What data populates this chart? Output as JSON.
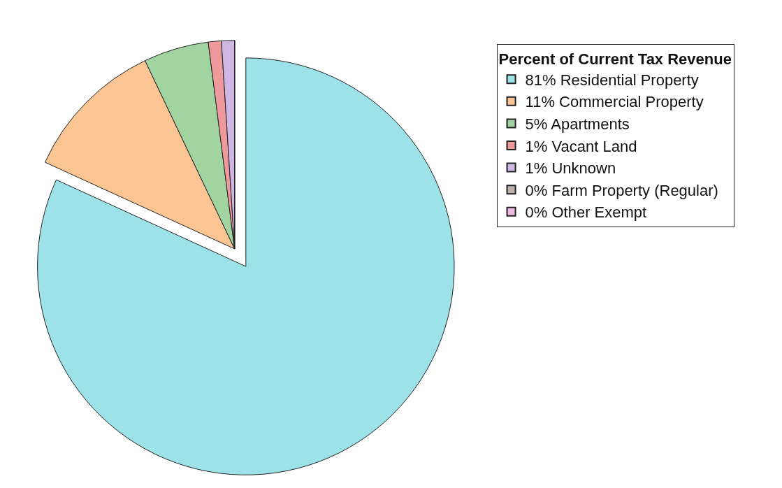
{
  "chart_data": {
    "type": "pie",
    "legend_title": "Percent of Current Tax Revenue",
    "categories": [
      "Residential Property",
      "Commercial Property",
      "Apartments",
      "Vacant Land",
      "Unknown",
      "Farm Property (Regular)",
      "Other Exempt"
    ],
    "values": [
      81,
      11,
      5,
      1,
      1,
      0,
      0
    ],
    "value_labels": [
      "81%",
      "11%",
      "5%",
      "1%",
      "1%",
      "0%",
      "0%"
    ],
    "colors": [
      "#9ee2e9",
      "#fbc593",
      "#a1d4a0",
      "#ee9a9c",
      "#cfb6e4",
      "#c0b1ad",
      "#f2b8e5"
    ],
    "legend": "right"
  }
}
